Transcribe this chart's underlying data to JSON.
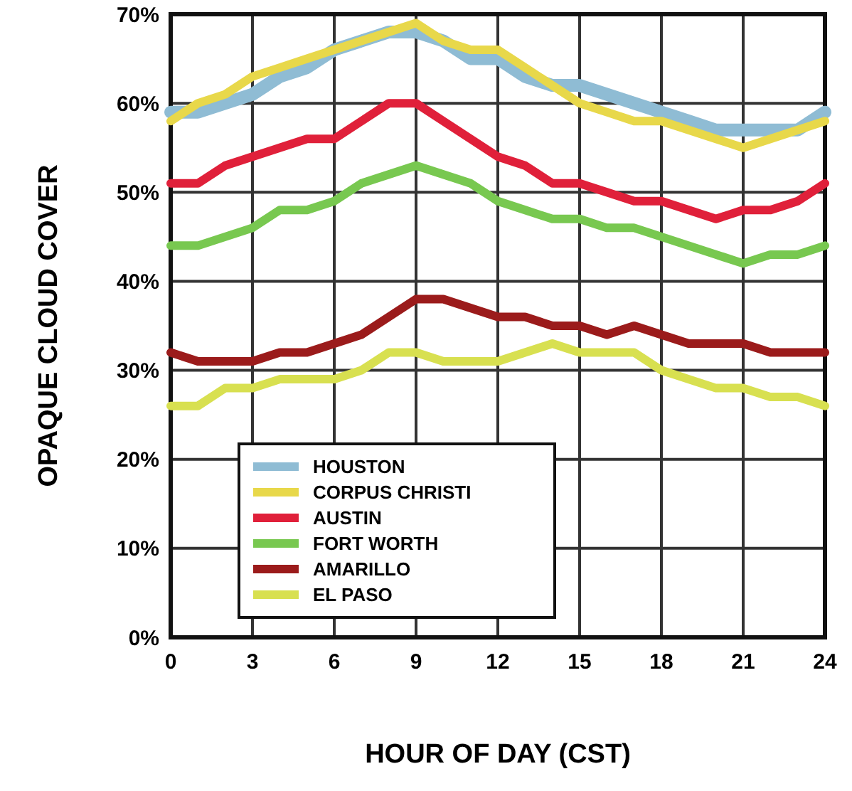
{
  "chart_data": {
    "type": "line",
    "xlabel": "HOUR OF DAY (CST)",
    "ylabel": "OPAQUE CLOUD COVER",
    "x": [
      0,
      1,
      2,
      3,
      4,
      5,
      6,
      7,
      8,
      9,
      10,
      11,
      12,
      13,
      14,
      15,
      16,
      17,
      18,
      19,
      20,
      21,
      22,
      23,
      24
    ],
    "xlim": [
      0,
      24
    ],
    "xticks": [
      0,
      3,
      6,
      9,
      12,
      15,
      18,
      21,
      24
    ],
    "ylim": [
      0,
      70
    ],
    "yticks": [
      {
        "value": 0,
        "label": "0%"
      },
      {
        "value": 10,
        "label": "10%"
      },
      {
        "value": 20,
        "label": "20%"
      },
      {
        "value": 30,
        "label": "30%"
      },
      {
        "value": 40,
        "label": "40%"
      },
      {
        "value": 50,
        "label": "50%"
      },
      {
        "value": 60,
        "label": "60%"
      },
      {
        "value": 70,
        "label": "70%"
      }
    ],
    "grid": true,
    "legend": "bottom left",
    "marker": "none",
    "line_style": "solid",
    "series": [
      {
        "name": "HOUSTON",
        "color": "#8fbcd4",
        "values": [
          59,
          59,
          60,
          61,
          63,
          64,
          66,
          67,
          68,
          68,
          67,
          65,
          65,
          63,
          62,
          62,
          61,
          60,
          59,
          58,
          57,
          57,
          57,
          57,
          59
        ]
      },
      {
        "name": "CORPUS CHRISTI",
        "color": "#e8d84a",
        "values": [
          58,
          60,
          61,
          63,
          64,
          65,
          66,
          67,
          68,
          69,
          67,
          66,
          66,
          64,
          62,
          60,
          59,
          58,
          58,
          57,
          56,
          55,
          56,
          57,
          58
        ]
      },
      {
        "name": "AUSTIN",
        "color": "#e0203a",
        "values": [
          51,
          51,
          53,
          54,
          55,
          56,
          56,
          58,
          60,
          60,
          58,
          56,
          54,
          53,
          51,
          51,
          50,
          49,
          49,
          48,
          47,
          48,
          48,
          49,
          51
        ]
      },
      {
        "name": "FORT WORTH",
        "color": "#78c850",
        "values": [
          44,
          44,
          45,
          46,
          48,
          48,
          49,
          51,
          52,
          53,
          52,
          51,
          49,
          48,
          47,
          47,
          46,
          46,
          45,
          44,
          43,
          42,
          43,
          43,
          44
        ]
      },
      {
        "name": "AMARILLO",
        "color": "#9b1b1b",
        "values": [
          32,
          31,
          31,
          31,
          32,
          32,
          33,
          34,
          36,
          38,
          38,
          37,
          36,
          36,
          35,
          35,
          34,
          35,
          34,
          33,
          33,
          33,
          32,
          32,
          32
        ]
      },
      {
        "name": "EL PASO",
        "color": "#d8e050",
        "values": [
          26,
          26,
          28,
          28,
          29,
          29,
          29,
          30,
          32,
          32,
          31,
          31,
          31,
          32,
          33,
          32,
          32,
          32,
          30,
          29,
          28,
          28,
          27,
          27,
          26
        ]
      }
    ]
  }
}
